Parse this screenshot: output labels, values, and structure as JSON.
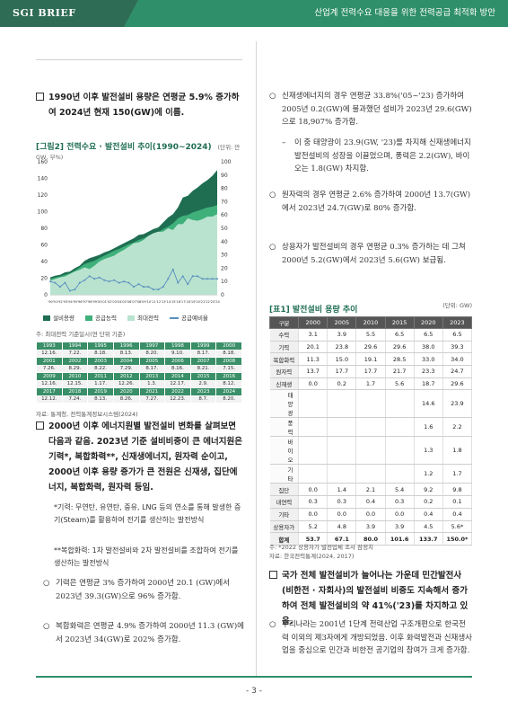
{
  "header": {
    "brand": "SGI BRIEF",
    "title": "산업계 전력수요 대응을 위한 전력공급 최적화 방안"
  },
  "page_number": "- 3 -",
  "left": {
    "para1": "1990년 이후 발전설비 용량은 연평균 5.9% 증가하여 2024년 현재 150(GW)에 이름.",
    "figure": {
      "caption": "[그림2] 전력수요 · 발전설비 추이(1990~2024)",
      "unit": "(단위: 만GW, 부%)",
      "note": "주: 최대전력 기준일시(연 단위 기준)",
      "source": "자료: 통계청, 전력통계정보시스템(2024)"
    },
    "peak_table": {
      "rows": [
        [
          "1993",
          "1994",
          "1995",
          "1996",
          "1997",
          "1998",
          "1999",
          "2000"
        ],
        [
          "12.16.",
          "7.22.",
          "8.18.",
          "8.13.",
          "8.20.",
          "9.10.",
          "8.17.",
          "8.18."
        ],
        [
          "2001",
          "2002",
          "2003",
          "2004",
          "2005",
          "2006",
          "2007",
          "2008"
        ],
        [
          "7.26.",
          "8.29.",
          "8.22.",
          "7.29.",
          "8.17.",
          "8.16.",
          "8.21.",
          "7.15."
        ],
        [
          "2009",
          "2010",
          "2011",
          "2012",
          "2013",
          "2014",
          "2015",
          "2016"
        ],
        [
          "12.16.",
          "12.15.",
          "1.17.",
          "12.26.",
          "1.3.",
          "12.17.",
          "2.9.",
          "8.12."
        ],
        [
          "2017",
          "2018",
          "2019",
          "2020",
          "2021",
          "2022",
          "2023",
          "2024"
        ],
        [
          "12.12.",
          "7.24.",
          "8.13.",
          "8.26.",
          "7.27.",
          "12.23.",
          "8.7.",
          "8.20."
        ]
      ]
    },
    "para2": "2000년 이후 에너지원별 발전설비 변화를 살펴보면 다음과 같음. 2023년 기준 설비비중이 큰 에너지원은 기력*, 복합화력**, 신재생에너지, 원자력 순이고, 2000년 이후 용량 증가가 큰 전원은 신재생, 집단에너지, 복합화력, 원자력 등임.",
    "note1": "*기력: 무연탄, 유연탄, 중유, LNG 등의 연소를 통해 발생한 증기(Steam)를 활용하여 전기를 생산하는 발전방식",
    "note2": "**복합화력: 1차 발전설비와 2차 발전설비를 조합하여 전기를 생산하는 발전방식",
    "bullet1": "기력은 연평균 3% 증가하여 2000년 20.1 (GW)에서 2023년 39.3(GW)으로 96% 증가함.",
    "bullet2": "복합화력은 연평균 4.9% 증가하여 2000년 11.3 (GW)에서 2023년 34(GW)로 202% 증가함."
  },
  "right": {
    "bullet1": "신재생에너지의 경우 연평균 33.8%('05~'23) 증가하여 2005년 0.2(GW)에 불과했던 설비가 2023년 29.6(GW)으로 18,907% 증가함.",
    "dash1": "이 중 태양광이 23.9(GW, '23)를 차지해 신재생에너지 발전설비의 성장을 이끌었으며, 풍력은 2.2(GW), 바이오는 1.8(GW) 차지함.",
    "bullet2": "원자력의 경우 연평균 2.6% 증가하여 2000년 13.7(GW)에서 2023년 24.7(GW)로 80% 증가함.",
    "bullet3": "상용자가 발전설비의 경우 연평균 0.3% 증가하는 데 그쳐 2000년 5.2(GW)에서 2023년 5.6(GW) 보급됨.",
    "table": {
      "caption": "[표1] 발전설비 용량 추이",
      "unit": "(단위: GW)",
      "headers": [
        "구분",
        "2000",
        "2005",
        "2010",
        "2015",
        "2020",
        "2023"
      ],
      "rows": [
        {
          "label": "수력",
          "values": [
            "3.1",
            "3.9",
            "5.5",
            "6.5",
            "6.5",
            "6.5"
          ]
        },
        {
          "label": "기력",
          "values": [
            "20.1",
            "23.8",
            "29.6",
            "29.6",
            "38.0",
            "39.3"
          ]
        },
        {
          "label": "복합화력",
          "values": [
            "11.3",
            "15.0",
            "19.1",
            "28.5",
            "33.0",
            "34.0"
          ]
        },
        {
          "label": "원자력",
          "values": [
            "13.7",
            "17.7",
            "17.7",
            "21.7",
            "23.3",
            "24.7"
          ]
        },
        {
          "label": "신재생",
          "values": [
            "0.0",
            "0.2",
            "1.7",
            "5.6",
            "18.7",
            "29.6"
          ]
        },
        {
          "label": "태양광",
          "sub": true,
          "values": [
            "",
            "",
            "",
            "",
            "14.6",
            "23.9"
          ]
        },
        {
          "label": "풍력",
          "sub": true,
          "values": [
            "",
            "",
            "",
            "",
            "1.6",
            "2.2"
          ]
        },
        {
          "label": "바이오",
          "sub": true,
          "values": [
            "",
            "",
            "",
            "",
            "1.3",
            "1.8"
          ]
        },
        {
          "label": "기타",
          "sub": true,
          "values": [
            "",
            "",
            "",
            "",
            "1.2",
            "1.7"
          ]
        },
        {
          "label": "집단",
          "values": [
            "0.0",
            "1.4",
            "2.1",
            "5.4",
            "9.2",
            "9.8"
          ]
        },
        {
          "label": "내연력",
          "values": [
            "0.3",
            "0.3",
            "0.4",
            "0.3",
            "0.2",
            "0.1"
          ]
        },
        {
          "label": "기타",
          "values": [
            "0.0",
            "0.0",
            "0.0",
            "0.0",
            "0.4",
            "0.4"
          ]
        },
        {
          "label": "상용자가",
          "values": [
            "5.2",
            "4.8",
            "3.9",
            "3.9",
            "4.5",
            "5.6*"
          ]
        },
        {
          "label": "합계",
          "total": true,
          "values": [
            "53.7",
            "67.1",
            "80.0",
            "101.6",
            "133.7",
            "150.0*"
          ]
        }
      ],
      "note": "주: *2022 상용자가 발전업체 조사 잠정치",
      "source": "자료: 한국전력통계(2024, 2017)"
    },
    "para3": "국가 전체 발전설비가 늘어나는 가운데 민간발전사 (비한전 · 자회사)의 발전설비 비중도 지속해서 증가하여 전체 발전설비의 약 41%('23)를 차지하고 있음.",
    "bullet4": "우리나라는 2001년 1단계 전력산업 구조개편으로 한국전력 이외의 제3자에게 개방되었음. 이후 화력발전과 신재생사업을 중심으로 민간과 비한전 공기업의 참여가 크게 증가함."
  },
  "chart_data": {
    "type": "area",
    "title": "[그림2] 전력수요 · 발전설비 추이(1990~2024)",
    "x": [
      1990,
      1991,
      1992,
      1993,
      1994,
      1995,
      1996,
      1997,
      1998,
      1999,
      2000,
      2001,
      2002,
      2003,
      2004,
      2005,
      2006,
      2007,
      2008,
      2009,
      2010,
      2011,
      2012,
      2013,
      2014,
      2015,
      2016,
      2017,
      2018,
      2019,
      2020,
      2021,
      2022,
      2023,
      2024
    ],
    "x_labels": [
      "'90",
      "'91",
      "'92",
      "'93",
      "'94",
      "'95",
      "'96",
      "'97",
      "'98",
      "'99",
      "'00",
      "'01",
      "'02",
      "'03",
      "'04",
      "'05",
      "'06",
      "'07",
      "'08",
      "'09",
      "'10",
      "'11",
      "'12",
      "'13",
      "'14",
      "'15",
      "'16",
      "'17",
      "'18",
      "'19",
      "'20",
      "'21",
      "'22",
      "'23",
      "'24"
    ],
    "y_left_ticks": [
      0,
      20,
      40,
      60,
      80,
      100,
      120,
      140,
      160
    ],
    "y_left_lim": [
      0,
      160
    ],
    "y_right_ticks": [
      0,
      10,
      20,
      30,
      40,
      50,
      60,
      70,
      80,
      90,
      100
    ],
    "y_right_lim": [
      0,
      100
    ],
    "series": [
      {
        "name": "설비용량",
        "axis": "left",
        "color": "#1f6e52",
        "values": [
          21,
          23,
          24,
          27,
          28,
          32,
          35,
          41,
          44,
          46,
          48,
          51,
          53,
          56,
          59,
          62,
          65,
          68,
          72,
          73,
          76,
          79,
          81,
          87,
          93,
          97,
          105,
          117,
          119,
          125,
          129,
          134,
          138,
          143,
          150
        ]
      },
      {
        "name": "공급능력",
        "axis": "left",
        "color": "#3fb07a",
        "values": [
          19,
          21,
          22,
          24,
          26,
          29,
          33,
          37,
          39,
          41,
          44,
          47,
          50,
          53,
          55,
          58,
          61,
          63,
          66,
          68,
          71,
          73,
          75,
          79,
          82,
          86,
          92,
          95,
          96,
          99,
          101,
          103,
          105,
          106,
          108
        ]
      },
      {
        "name": "최대전력",
        "axis": "left",
        "color": "#b9e3cf",
        "values": [
          17,
          19,
          21,
          22,
          25,
          28,
          30,
          33,
          31,
          35,
          40,
          43,
          45,
          47,
          51,
          54,
          58,
          62,
          63,
          66,
          71,
          74,
          76,
          76,
          80,
          78,
          85,
          85,
          92,
          90,
          89,
          91,
          94,
          94,
          97
        ]
      },
      {
        "name": "공급예비율",
        "axis": "right",
        "color": "#5a8fbf",
        "values": [
          10,
          9,
          6,
          9,
          3,
          4,
          9,
          11,
          14,
          12,
          13,
          11,
          10,
          11,
          9,
          10,
          9,
          6,
          8,
          6,
          6,
          4,
          4,
          6,
          12,
          19,
          9,
          14,
          8,
          14,
          14,
          12,
          12,
          12,
          12
        ]
      }
    ],
    "legend_position": "bottom",
    "grid": false
  }
}
